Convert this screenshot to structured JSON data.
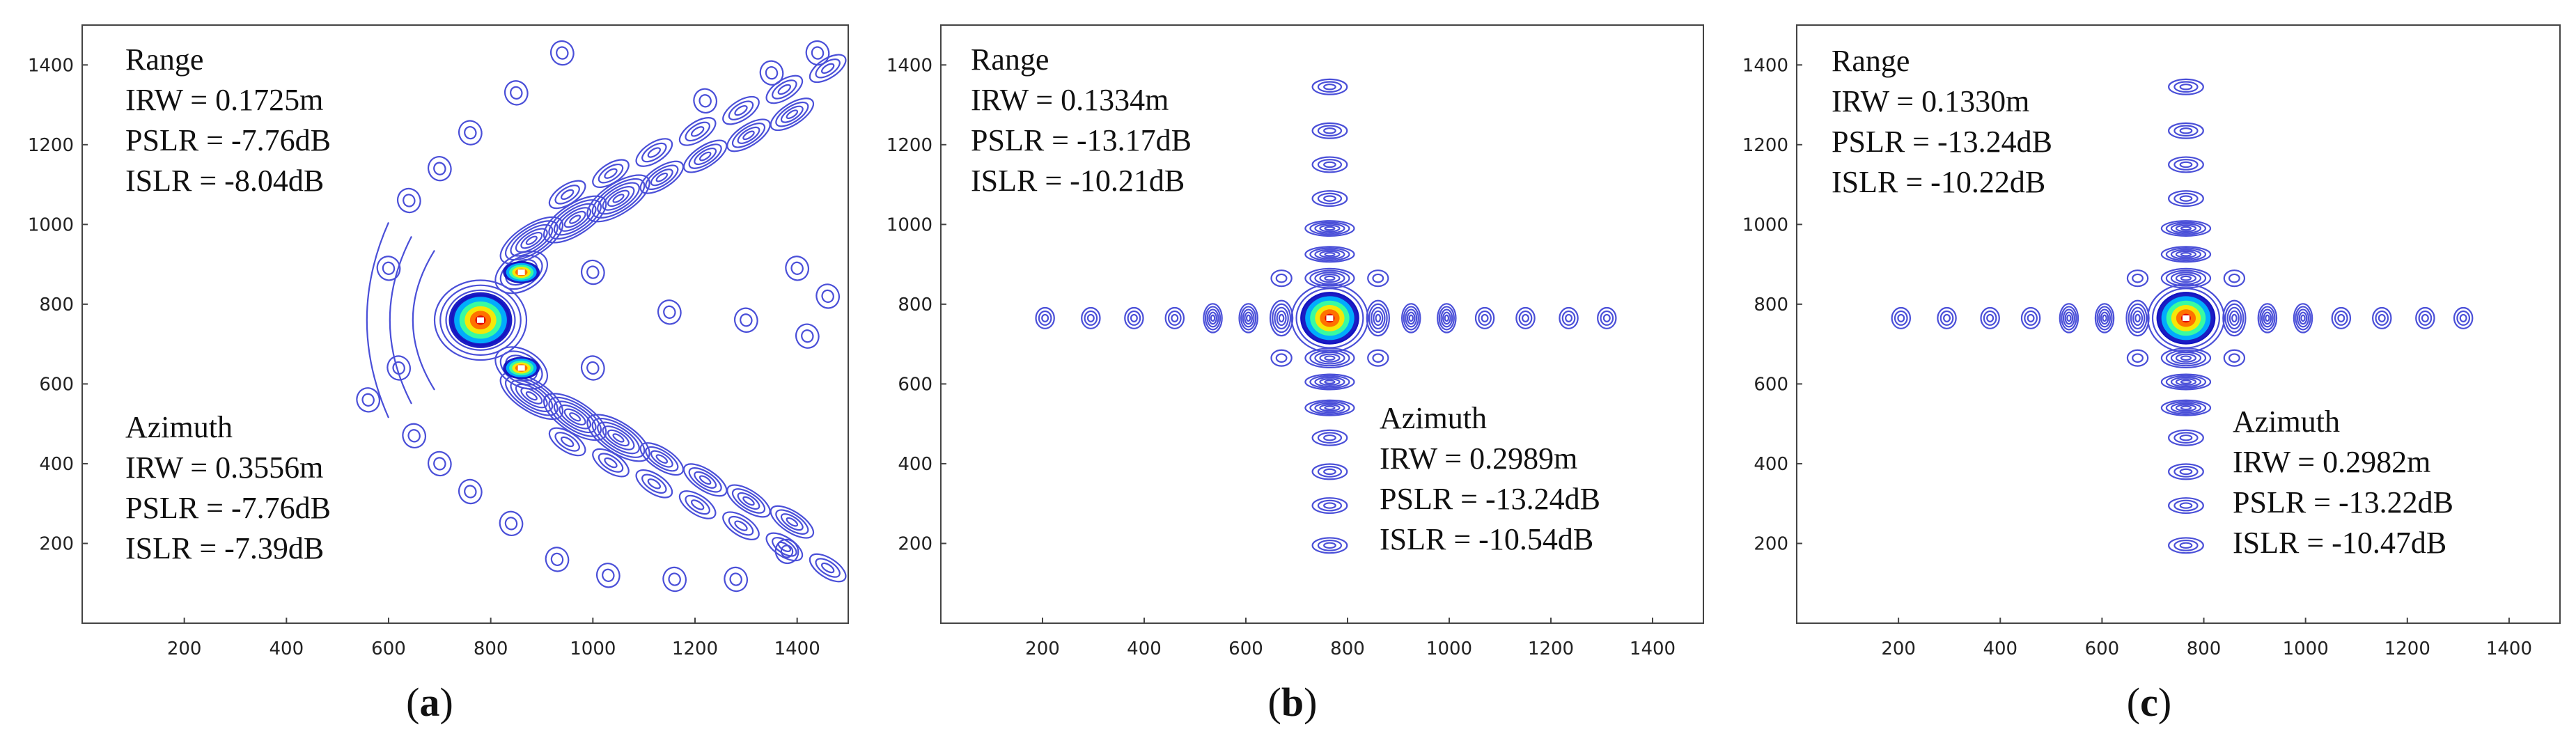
{
  "chart_data": [
    {
      "type": "contour",
      "caption_letter": "a",
      "shape": "skewed",
      "peak": [
        780,
        760
      ],
      "xlim": [
        0,
        1500
      ],
      "ylim": [
        0,
        1500
      ],
      "xticks": [
        200,
        400,
        600,
        800,
        1000,
        1200,
        1400
      ],
      "yticks": [
        200,
        400,
        600,
        800,
        1000,
        1200,
        1400
      ],
      "range": {
        "title": "Range",
        "irw": "IRW = 0.1725m",
        "pslr": "PSLR = -7.76dB",
        "islr": "ISLR =  -8.04dB"
      },
      "azimuth": {
        "title": "Azimuth",
        "irw": "IRW = 0.3556m",
        "pslr": "PSLR = -7.76dB",
        "islr": "ISLR =  -7.39dB"
      }
    },
    {
      "type": "contour",
      "caption_letter": "b",
      "shape": "cross",
      "peak": [
        765,
        765
      ],
      "xlim": [
        0,
        1500
      ],
      "ylim": [
        0,
        1500
      ],
      "xticks": [
        200,
        400,
        600,
        800,
        1000,
        1200,
        1400
      ],
      "yticks": [
        200,
        400,
        600,
        800,
        1000,
        1200,
        1400
      ],
      "range": {
        "title": "Range",
        "irw": "IRW = 0.1334m",
        "pslr": "PSLR = -13.17dB",
        "islr": "ISLR =  -10.21dB"
      },
      "azimuth": {
        "title": "Azimuth",
        "irw": "IRW = 0.2989m",
        "pslr": "PSLR = -13.24dB",
        "islr": "ISLR =  -10.54dB"
      }
    },
    {
      "type": "contour",
      "caption_letter": "c",
      "shape": "cross",
      "peak": [
        765,
        765
      ],
      "xlim": [
        0,
        1500
      ],
      "ylim": [
        0,
        1500
      ],
      "xticks": [
        200,
        400,
        600,
        800,
        1000,
        1200,
        1400
      ],
      "yticks": [
        200,
        400,
        600,
        800,
        1000,
        1200,
        1400
      ],
      "range": {
        "title": "Range",
        "irw": "IRW = 0.1330m",
        "pslr": "PSLR = -13.24dB",
        "islr": "ISLR =  -10.22dB"
      },
      "azimuth": {
        "title": "Azimuth",
        "irw": "IRW = 0.2982m",
        "pslr": "PSLR = -13.22dB",
        "islr": "ISLR =  -10.47dB"
      }
    }
  ],
  "captions": {
    "a": {
      "open": "(",
      "letter": "a",
      "close": ")"
    },
    "b": {
      "open": "(",
      "letter": "b",
      "close": ")"
    },
    "c": {
      "open": "(",
      "letter": "c",
      "close": ")"
    }
  },
  "colors": {
    "contour": "#4a4fd8",
    "axis": "#444444",
    "hot": [
      "#1010c0",
      "#00b4ff",
      "#3cff9c",
      "#ffe600",
      "#ff6a00",
      "#e00000"
    ]
  }
}
